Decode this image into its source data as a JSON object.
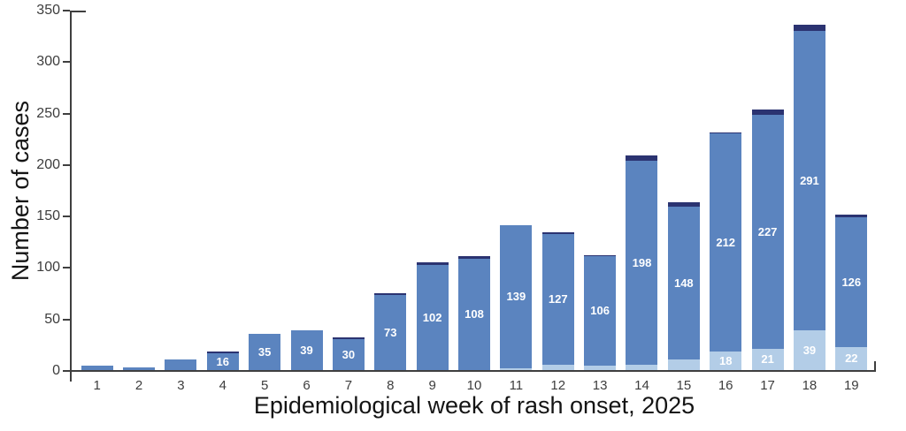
{
  "chart_data": {
    "type": "bar",
    "stacked": true,
    "title": "",
    "xlabel": "Epidemiological week of rash onset, 2025",
    "ylabel": "Number of cases",
    "ylim": [
      0,
      350
    ],
    "yticks": [
      0,
      50,
      100,
      150,
      200,
      250,
      300,
      350
    ],
    "grid": false,
    "legend": "none",
    "categories": [
      "1",
      "2",
      "3",
      "4",
      "5",
      "6",
      "7",
      "8",
      "9",
      "10",
      "11",
      "12",
      "13",
      "14",
      "15",
      "16",
      "17",
      "18",
      "19"
    ],
    "series": [
      {
        "name": "light-blue-bottom-segment",
        "color": "#b3cde7",
        "label_color": "#ffffff",
        "values": [
          0,
          0,
          0,
          0,
          0,
          0,
          0,
          0,
          0,
          0,
          2,
          5,
          4,
          5,
          10,
          18,
          21,
          39,
          22
        ],
        "labels": [
          "",
          "",
          "",
          "",
          "",
          "",
          "",
          "",
          "",
          "",
          "",
          "",
          "",
          "",
          "",
          "18",
          "21",
          "39",
          "22"
        ]
      },
      {
        "name": "medium-blue-middle-segment",
        "color": "#5b84bf",
        "label_color": "#ffffff",
        "values": [
          4,
          3,
          10,
          16,
          35,
          39,
          30,
          73,
          102,
          108,
          139,
          127,
          106,
          198,
          148,
          212,
          227,
          291,
          126
        ],
        "labels": [
          "",
          "",
          "",
          "16",
          "35",
          "39",
          "30",
          "73",
          "102",
          "108",
          "139",
          "127",
          "106",
          "198",
          "148",
          "212",
          "227",
          "291",
          "126"
        ]
      },
      {
        "name": "dark-navy-top-segment",
        "color": "#2b3371",
        "label_color": "#ffffff",
        "values": [
          0,
          0,
          0,
          2,
          0,
          0,
          2,
          2,
          3,
          3,
          0,
          2,
          1,
          5,
          4,
          1,
          5,
          6,
          3
        ],
        "labels": [
          "",
          "",
          "",
          "",
          "",
          "",
          "",
          "",
          "",
          "",
          "",
          "",
          "",
          "",
          "",
          "",
          "",
          "",
          ""
        ]
      }
    ]
  },
  "colors": {
    "axis": "#3f3f3f",
    "tick_text": "#3d3d3d",
    "title_text": "#141414",
    "background": "#ffffff"
  }
}
